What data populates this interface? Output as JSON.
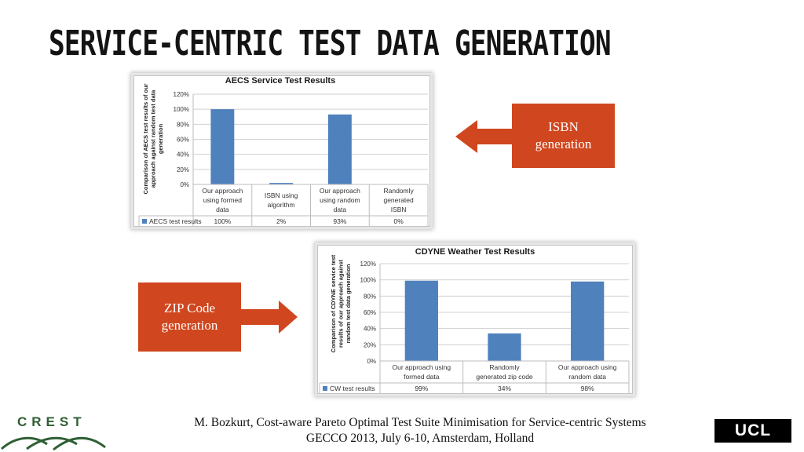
{
  "slide": {
    "title": "SERVICE-CENTRIC TEST DATA GENERATION",
    "footer_line1": "M. Bozkurt, Cost-aware Pareto Optimal Test Suite Minimisation for Service-centric Systems",
    "footer_line2": "GECCO 2013, July 6-10, Amsterdam, Holland",
    "callouts": {
      "isbn": [
        "ISBN",
        "generation"
      ],
      "zip": [
        "ZIP Code",
        "generation"
      ]
    },
    "logos": {
      "left": "CREST",
      "right": "UCL"
    },
    "colors": {
      "callout": "#d0461e",
      "bar": "#4f81bd",
      "crest": "#2f5f34"
    }
  },
  "chart_data": [
    {
      "type": "bar",
      "title": "AECS Service Test Results",
      "ylabel": [
        "Comparison of AECS test results of our",
        "approach against random test data",
        "generation"
      ],
      "categories": [
        [
          "Our approach",
          "using formed",
          "data"
        ],
        [
          "ISBN using",
          "algorithm"
        ],
        [
          "Our approach",
          "using random",
          "data"
        ],
        [
          "Randomly",
          "generated",
          "ISBN"
        ]
      ],
      "series": [
        {
          "name": "AECS test results",
          "values": [
            100,
            2,
            93,
            0
          ],
          "labels": [
            "100%",
            "2%",
            "93%",
            "0%"
          ]
        }
      ],
      "yticks": [
        "0%",
        "20%",
        "40%",
        "60%",
        "80%",
        "100%",
        "120%"
      ],
      "ylim": [
        0,
        120
      ],
      "grid": true,
      "legend": "data-table-left"
    },
    {
      "type": "bar",
      "title": "CDYNE Weather Test Results",
      "ylabel": [
        "Comparison of CDYNE service test",
        "results of our approach against",
        "random test data generation"
      ],
      "categories": [
        [
          "Our approach using",
          "formed data"
        ],
        [
          "Randomly",
          "generated zip code"
        ],
        [
          "Our approach using",
          "random data"
        ]
      ],
      "series": [
        {
          "name": "CW test results",
          "values": [
            99,
            34,
            98
          ],
          "labels": [
            "99%",
            "34%",
            "98%"
          ]
        }
      ],
      "yticks": [
        "0%",
        "20%",
        "40%",
        "60%",
        "80%",
        "100%",
        "120%"
      ],
      "ylim": [
        0,
        120
      ],
      "grid": true,
      "legend": "data-table-left"
    }
  ]
}
